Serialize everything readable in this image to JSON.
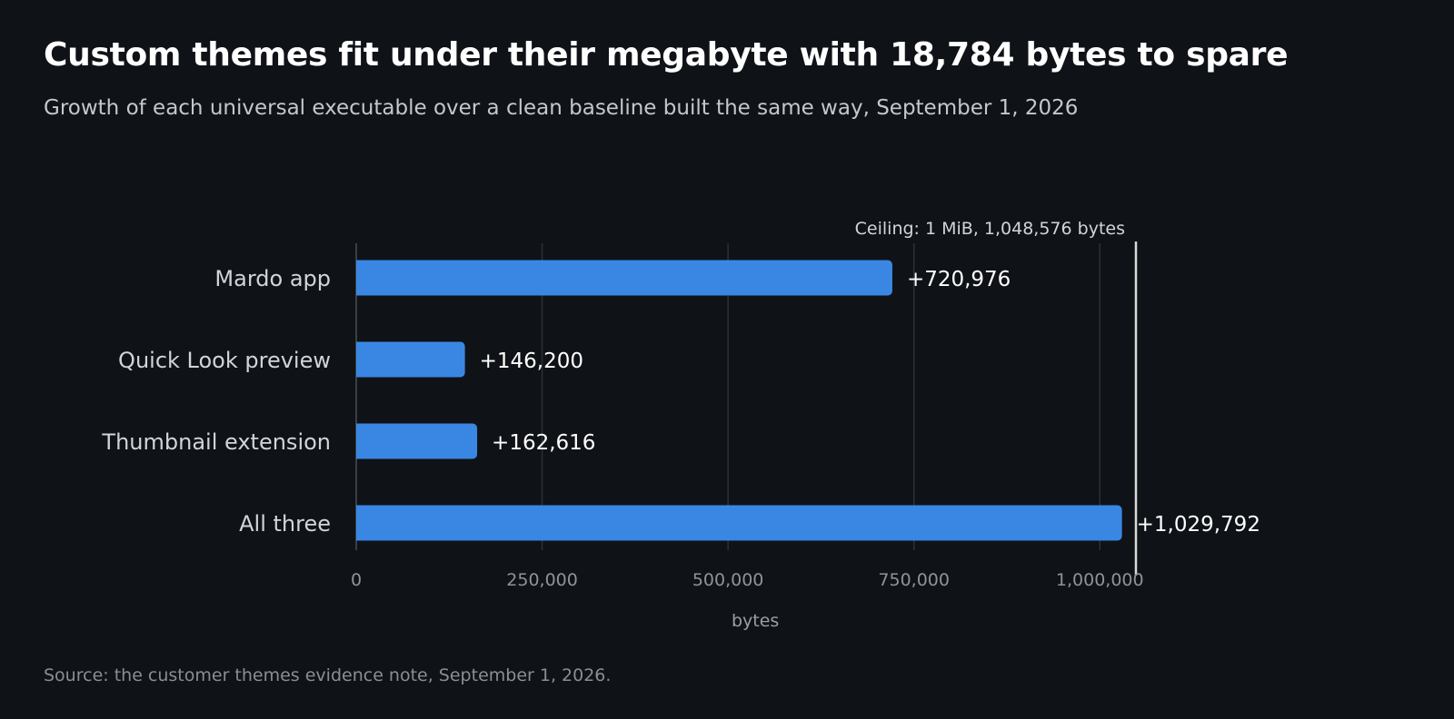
{
  "header": {
    "title": "Custom themes fit under their megabyte with 18,784 bytes to spare",
    "subtitle": "Growth of each universal executable over a clean baseline built the same way, September 1, 2026"
  },
  "footer": {
    "source": "Source: the customer themes evidence note, September 1, 2026."
  },
  "chart_data": {
    "type": "bar",
    "orientation": "horizontal",
    "categories": [
      "Mardo app",
      "Quick Look preview",
      "Thumbnail extension",
      "All three"
    ],
    "values": [
      720976,
      146200,
      162616,
      1029792
    ],
    "value_labels": [
      "+720,976",
      "+146,200",
      "+162,616",
      "+1,029,792"
    ],
    "xlabel": "bytes",
    "xlim": [
      0,
      1048576
    ],
    "ticks": [
      0,
      250000,
      500000,
      750000,
      1000000
    ],
    "tick_labels": [
      "0",
      "250,000",
      "500,000",
      "750,000",
      "1,000,000"
    ],
    "grid": true,
    "reference_line": {
      "value": 1048576,
      "label": "Ceiling: 1 MiB, 1,048,576 bytes"
    },
    "colors": {
      "bar": "#3a87e3",
      "grid": "#2c3038",
      "axis": "#4a4e55",
      "reference": "#d9d9d6"
    }
  }
}
